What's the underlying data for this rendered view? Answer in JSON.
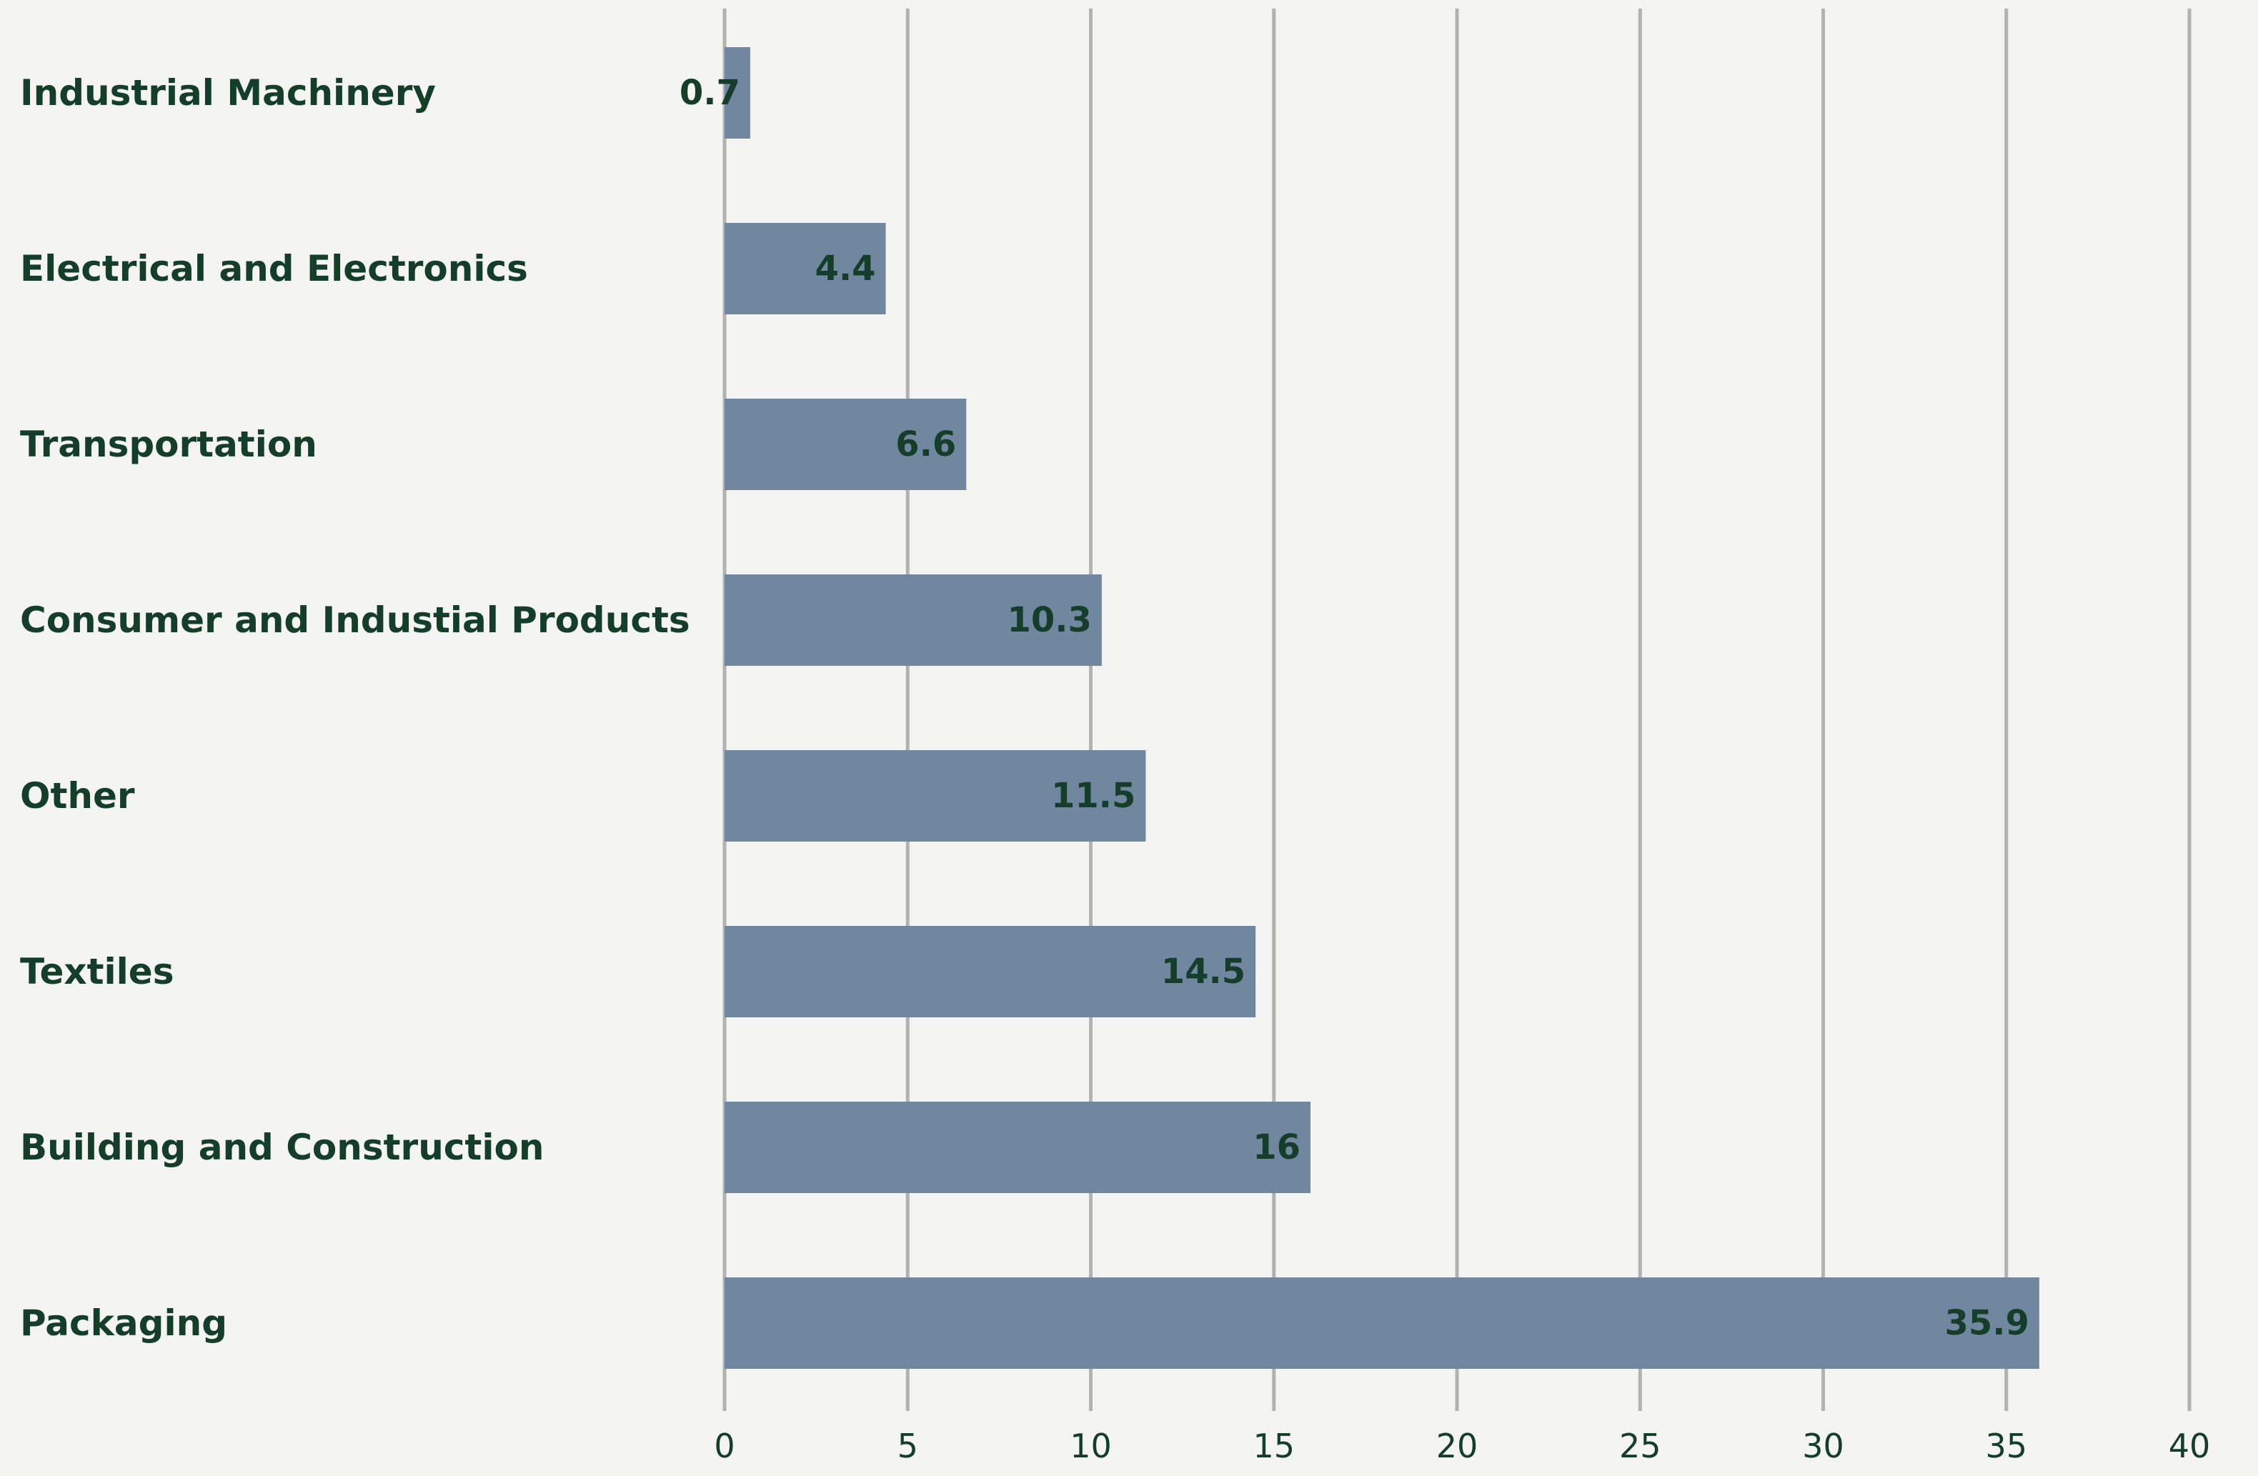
{
  "chart_data": {
    "type": "bar",
    "orientation": "horizontal",
    "title": "",
    "xlabel": "",
    "ylabel": "",
    "categories": [
      "Industrial Machinery",
      "Electrical and Electronics",
      "Transportation",
      "Consumer and Industial Products",
      "Other",
      "Textiles",
      "Building and Construction",
      "Packaging"
    ],
    "values": [
      0.7,
      4.4,
      6.6,
      10.3,
      11.5,
      14.5,
      16,
      35.9
    ],
    "data_labels": [
      "0.7",
      "4.4",
      "6.6",
      "10.3",
      "11.5",
      "14.5",
      "16",
      "35.9"
    ],
    "xlim": [
      0,
      40
    ],
    "x_ticks": [
      "0",
      "5",
      "10",
      "15",
      "20",
      "25",
      "30",
      "35",
      "40"
    ],
    "grid": "vertical",
    "legend": "none",
    "colors": {
      "bar": "#71869f",
      "text": "#143d2a",
      "grid": "#b2b2b2",
      "background": "#f4f4f3"
    }
  }
}
